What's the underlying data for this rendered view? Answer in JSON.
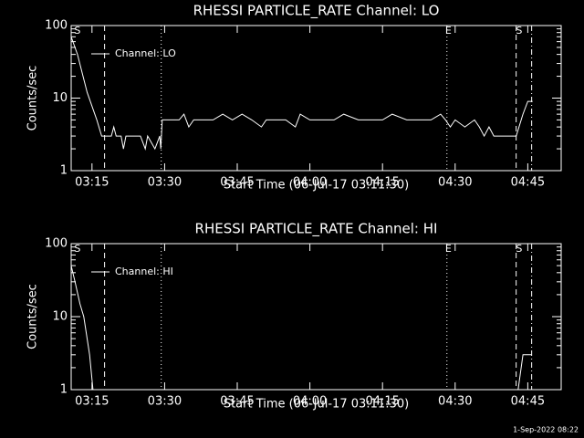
{
  "chart_data": [
    {
      "type": "line",
      "title": "RHESSI PARTICLE_RATE Channel: LO",
      "xlabel": "Start Time (06-Jul-17 03:11:30)",
      "ylabel": "Counts/sec",
      "yscale": "log",
      "xlim": [
        10.7,
        111.9
      ],
      "ylim": [
        1,
        100
      ],
      "xticks": [
        {
          "value": 15,
          "label": "03:15"
        },
        {
          "value": 30,
          "label": "03:30"
        },
        {
          "value": 45,
          "label": "03:45"
        },
        {
          "value": 60,
          "label": "04:00"
        },
        {
          "value": 75,
          "label": "04:15"
        },
        {
          "value": 90,
          "label": "04:30"
        },
        {
          "value": 105,
          "label": "04:45"
        }
      ],
      "yticks": [
        1,
        10,
        100
      ],
      "legend": "upper left",
      "series": [
        {
          "name": "Channel: LO",
          "color": "#ffffff",
          "x": [
            10.7,
            12,
            14,
            16,
            17,
            19,
            19.5,
            20,
            21,
            21.5,
            22,
            25,
            26,
            26.5,
            28,
            29,
            29.2,
            29.5,
            33,
            34,
            35,
            36,
            40,
            42,
            44,
            46,
            48,
            50,
            51,
            55,
            57,
            58,
            60,
            65,
            67,
            70,
            75,
            77,
            80,
            85,
            87,
            88,
            89,
            90,
            92,
            94,
            95,
            96,
            97,
            98,
            100,
            102,
            102.6,
            104,
            105,
            106
          ],
          "values": [
            70,
            40,
            12,
            5,
            3,
            3,
            4,
            3,
            3,
            2,
            3,
            3,
            2,
            3,
            2,
            3,
            2,
            5,
            5,
            6,
            4,
            5,
            5,
            6,
            5,
            6,
            5,
            4,
            5,
            5,
            4,
            6,
            5,
            5,
            6,
            5,
            5,
            6,
            5,
            5,
            6,
            5,
            4,
            5,
            4,
            5,
            4,
            3,
            4,
            3,
            3,
            3,
            3,
            6,
            9,
            9
          ]
        }
      ],
      "vlines": [
        {
          "x": 17.6,
          "style": "dashed"
        },
        {
          "x": 29.3,
          "style": "dotted"
        },
        {
          "x": 88.3,
          "style": "dotted"
        },
        {
          "x": 102.6,
          "style": "dashed"
        },
        {
          "x": 105.8,
          "style": "dashdot"
        }
      ],
      "annotations": [
        {
          "text": "S",
          "x": 12.0
        },
        {
          "text": "E",
          "x": 88.6
        },
        {
          "text": "S",
          "x": 103.2
        }
      ]
    },
    {
      "type": "line",
      "title": "RHESSI PARTICLE_RATE Channel: HI",
      "xlabel": "Start Time (06-Jul-17 03:11:30)",
      "ylabel": "Counts/sec",
      "yscale": "log",
      "xlim": [
        10.7,
        111.9
      ],
      "ylim": [
        1,
        100
      ],
      "xticks": [
        {
          "value": 15,
          "label": "03:15"
        },
        {
          "value": 30,
          "label": "03:30"
        },
        {
          "value": 45,
          "label": "03:45"
        },
        {
          "value": 60,
          "label": "04:00"
        },
        {
          "value": 75,
          "label": "04:15"
        },
        {
          "value": 90,
          "label": "04:30"
        },
        {
          "value": 105,
          "label": "04:45"
        }
      ],
      "yticks": [
        1,
        10,
        100
      ],
      "legend": "upper left",
      "series": [
        {
          "name": "Channel: HI",
          "color": "#ffffff",
          "x": [
            10.7,
            11.5,
            12.5,
            13.3,
            14.5,
            15.2,
            60,
            103.0,
            104,
            105.8
          ],
          "values": [
            50,
            30,
            15,
            10,
            3,
            1,
            null,
            1,
            3,
            3
          ]
        }
      ],
      "vlines": [
        {
          "x": 17.6,
          "style": "dashed"
        },
        {
          "x": 29.3,
          "style": "dotted"
        },
        {
          "x": 88.3,
          "style": "dotted"
        },
        {
          "x": 102.6,
          "style": "dashed"
        },
        {
          "x": 105.8,
          "style": "dashdot"
        }
      ],
      "annotations": [
        {
          "text": "S",
          "x": 12.0
        },
        {
          "text": "E",
          "x": 88.6
        },
        {
          "text": "S",
          "x": 103.2
        }
      ]
    }
  ],
  "footer": "1-Sep-2022 08:22"
}
